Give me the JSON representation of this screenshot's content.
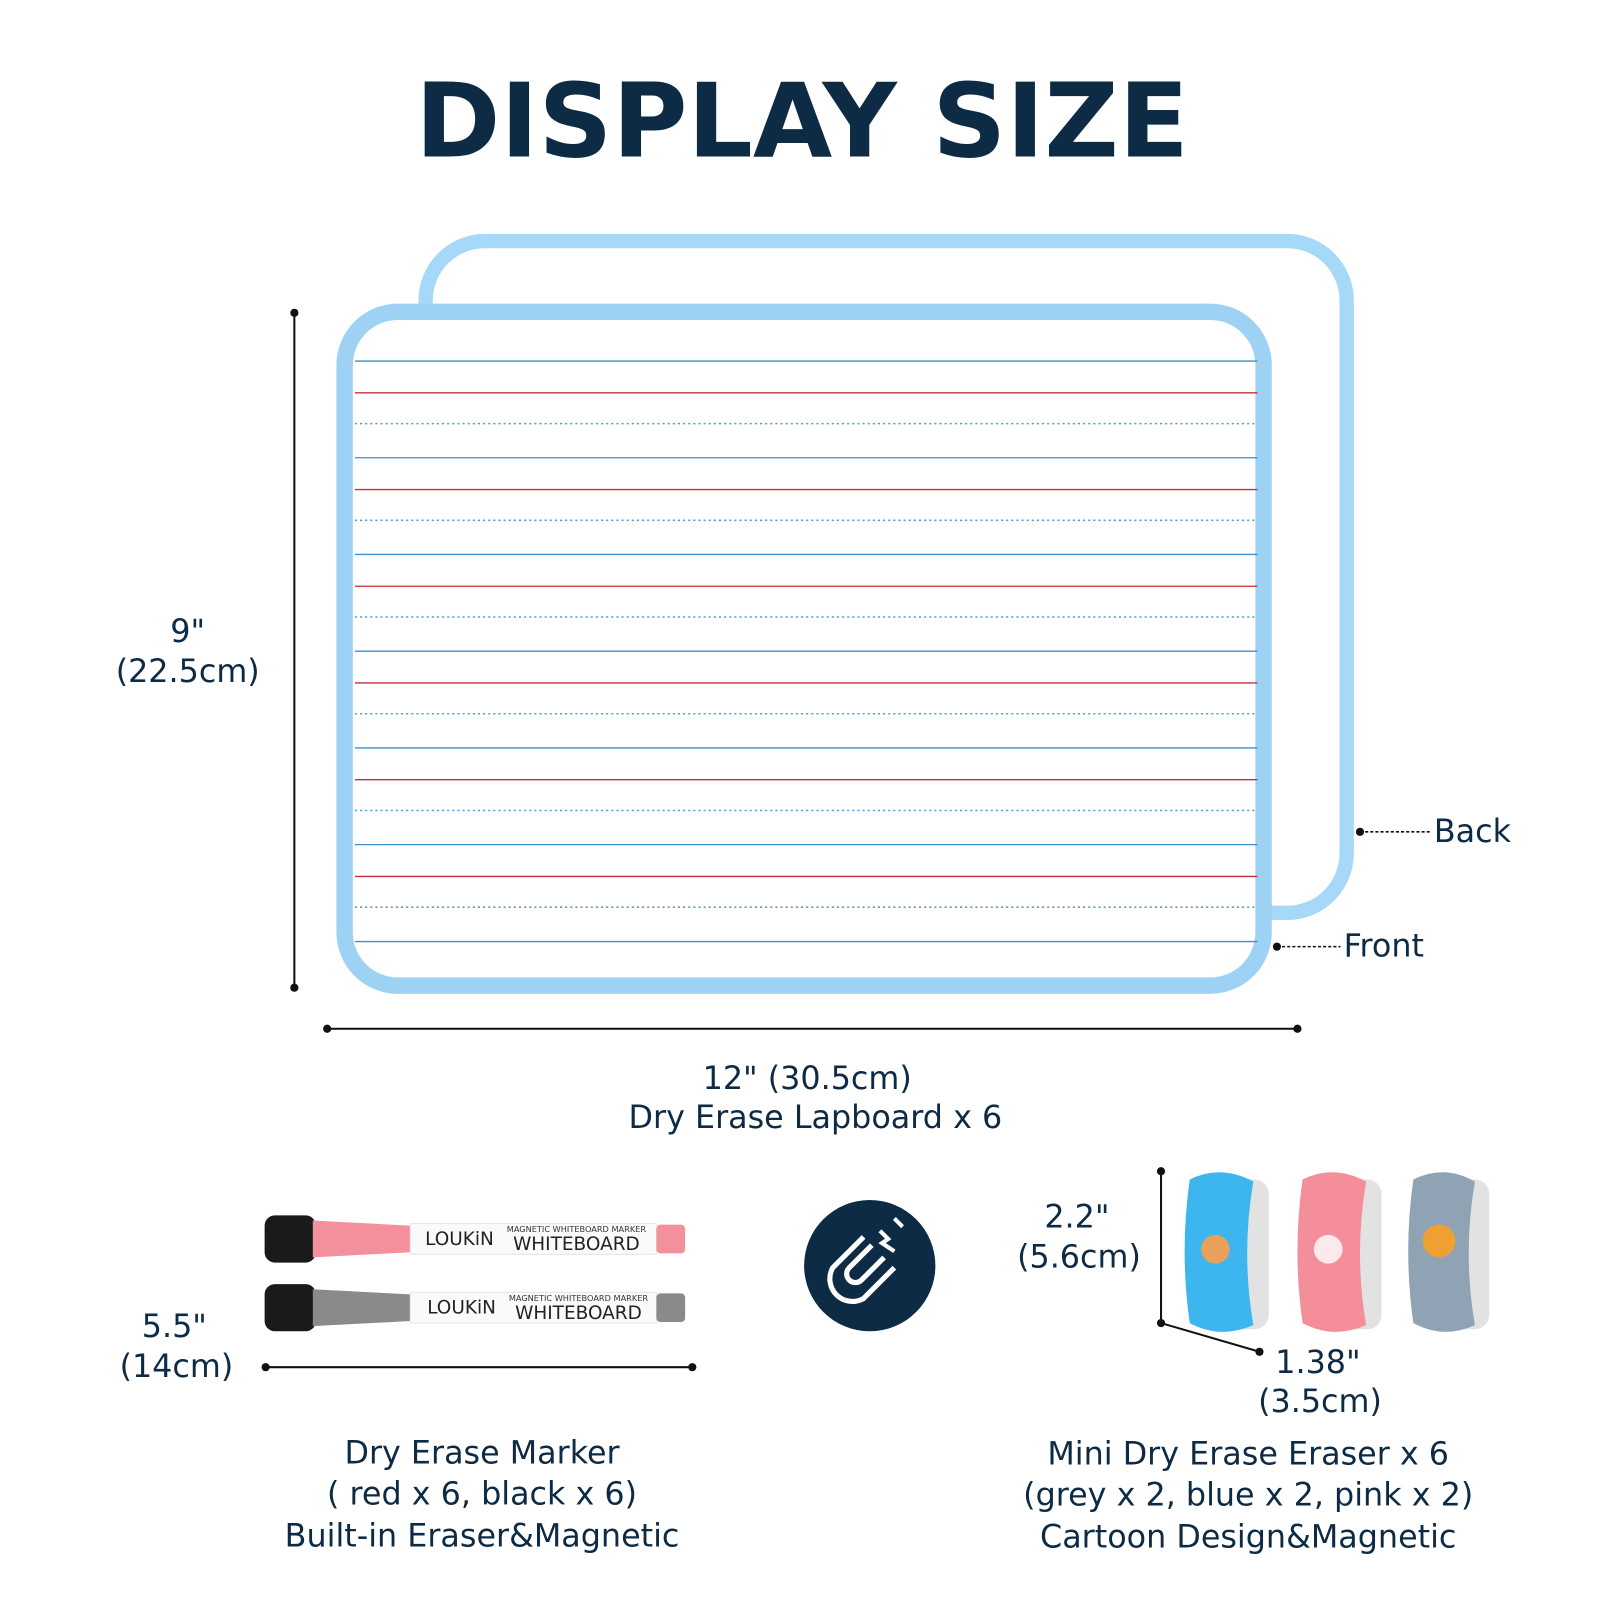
{
  "title": "DISPLAY SIZE",
  "lapboard": {
    "height": [
      "9\"",
      "(22.5cm)"
    ],
    "width": "12\" (30.5cm)",
    "name": "Dry Erase Lapboard x 6",
    "back": "Back",
    "front": "Front"
  },
  "marker": {
    "length": [
      "5.5\"",
      "(14cm)"
    ],
    "brand": "LOUKiN",
    "subtitle": "MAGNETIC WHITEBOARD MARKER",
    "label": "WHITEBOARD",
    "description": [
      "Dry Erase Marker",
      "( red x 6,  black x 6)",
      "Built-in Eraser&Magnetic"
    ]
  },
  "eraser": {
    "height": [
      "2.2\"",
      "(5.6cm)"
    ],
    "depth": [
      "1.38\"",
      "(3.5cm)"
    ],
    "description": [
      "Mini Dry Erase Eraser x 6",
      "(grey x 2, blue x 2, pink x 2)",
      "Cartoon Design&Magnetic"
    ]
  }
}
